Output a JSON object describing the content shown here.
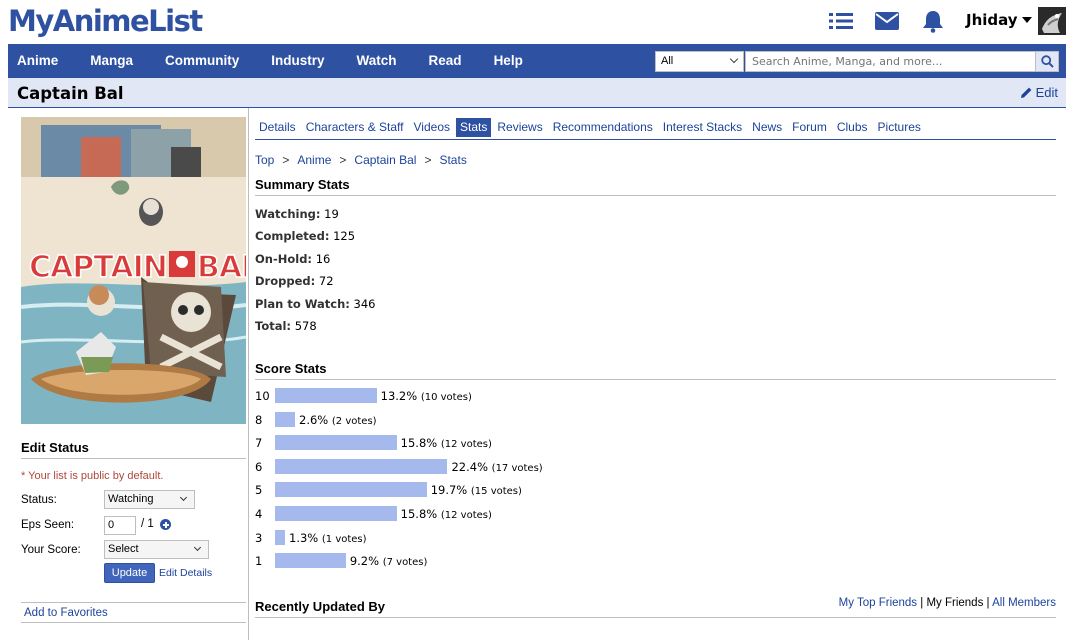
{
  "header": {
    "logo": "MyAnimeList",
    "icons": [
      "list-icon",
      "mail-icon",
      "bell-icon"
    ],
    "username": "Jhiday"
  },
  "nav": {
    "items": [
      "Anime",
      "Manga",
      "Community",
      "Industry",
      "Watch",
      "Read",
      "Help"
    ],
    "search_category": "All",
    "search_placeholder": "Search Anime, Manga, and more..."
  },
  "title_bar": {
    "title": "Captain Bal",
    "edit": "Edit"
  },
  "sidebar": {
    "edit_status_heading": "Edit Status",
    "public_note": "* Your list is public by default.",
    "status_label": "Status:",
    "status_value": "Watching",
    "eps_label": "Eps Seen:",
    "eps_value": "0",
    "eps_total": "/ 1",
    "score_label": "Your Score:",
    "score_value": "Select",
    "update_button": "Update",
    "edit_details": "Edit Details",
    "add_favorites": "Add to Favorites"
  },
  "tabs": [
    "Details",
    "Characters & Staff",
    "Videos",
    "Stats",
    "Reviews",
    "Recommendations",
    "Interest Stacks",
    "News",
    "Forum",
    "Clubs",
    "Pictures"
  ],
  "active_tab": "Stats",
  "breadcrumb": [
    "Top",
    "Anime",
    "Captain Bal",
    "Stats"
  ],
  "summary": {
    "heading": "Summary Stats",
    "rows": [
      {
        "label": "Watching:",
        "value": "19"
      },
      {
        "label": "Completed:",
        "value": "125"
      },
      {
        "label": "On-Hold:",
        "value": "16"
      },
      {
        "label": "Dropped:",
        "value": "72"
      },
      {
        "label": "Plan to Watch:",
        "value": "346"
      },
      {
        "label": "Total:",
        "value": "578"
      }
    ]
  },
  "score_heading": "Score Stats",
  "chart_data": {
    "type": "bar",
    "categories": [
      "10",
      "8",
      "7",
      "6",
      "5",
      "4",
      "3",
      "1"
    ],
    "values": [
      13.2,
      2.6,
      15.8,
      22.4,
      19.7,
      15.8,
      1.3,
      9.2
    ],
    "percent_labels": [
      "13.2%",
      "2.6%",
      "15.8%",
      "22.4%",
      "19.7%",
      "15.8%",
      "1.3%",
      "9.2%"
    ],
    "vote_labels": [
      "(10 votes)",
      "(2 votes)",
      "(12 votes)",
      "(17 votes)",
      "(15 votes)",
      "(12 votes)",
      "(1 votes)",
      "(7 votes)"
    ],
    "title": "Score Stats",
    "bar_color": "#a6b9ed"
  },
  "recent": {
    "heading": "Recently Updated By",
    "links": [
      "My Top Friends",
      "My Friends",
      "All Members"
    ]
  },
  "colors": {
    "brand": "#2e51a2",
    "link": "#1c439b",
    "title_bg": "#e1e7f5",
    "note": "#b1473a"
  }
}
